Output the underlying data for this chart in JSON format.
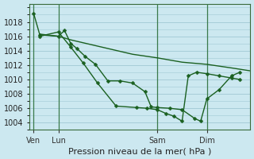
{
  "background_color": "#cce8f0",
  "grid_color": "#a0c8d4",
  "line_color": "#1a6020",
  "xlabel": "Pression niveau de la mer( hPa )",
  "xtick_labels": [
    "Ven",
    "Lun",
    "Sam",
    "Dim"
  ],
  "xtick_positions": [
    0,
    24,
    120,
    168
  ],
  "xlim": [
    -4,
    210
  ],
  "ylim": [
    1003.0,
    1020.5
  ],
  "yticks": [
    1004,
    1006,
    1008,
    1010,
    1012,
    1014,
    1016,
    1018
  ],
  "vlines": [
    0,
    24,
    120,
    168
  ],
  "series1_x": [
    0,
    6,
    24,
    30,
    36,
    42,
    50,
    60,
    72,
    84,
    96,
    108,
    114,
    120,
    132,
    144,
    156,
    162,
    168,
    180,
    192,
    200
  ],
  "series1_y": [
    1019.2,
    1016.2,
    1016.0,
    1016.8,
    1015.0,
    1014.3,
    1013.2,
    1012.1,
    1009.8,
    1009.8,
    1009.5,
    1008.3,
    1006.2,
    1006.1,
    1006.0,
    1005.8,
    1004.6,
    1004.2,
    1007.3,
    1008.6,
    1010.5,
    1011.0
  ],
  "series2_x": [
    6,
    24,
    36,
    48,
    60,
    72,
    96,
    120,
    144,
    168,
    192,
    210
  ],
  "series2_y": [
    1016.3,
    1016.0,
    1015.5,
    1015.1,
    1014.7,
    1014.3,
    1013.5,
    1013.0,
    1012.4,
    1012.1,
    1011.6,
    1011.2
  ],
  "series3_x": [
    6,
    24,
    36,
    48,
    62,
    80,
    100,
    110,
    120,
    128,
    136,
    144,
    150,
    158,
    168,
    180,
    192,
    200
  ],
  "series3_y": [
    1016.0,
    1016.6,
    1014.5,
    1012.3,
    1009.5,
    1006.3,
    1006.1,
    1006.0,
    1005.8,
    1005.3,
    1004.9,
    1004.2,
    1010.5,
    1011.0,
    1010.8,
    1010.5,
    1010.2,
    1010.0
  ]
}
